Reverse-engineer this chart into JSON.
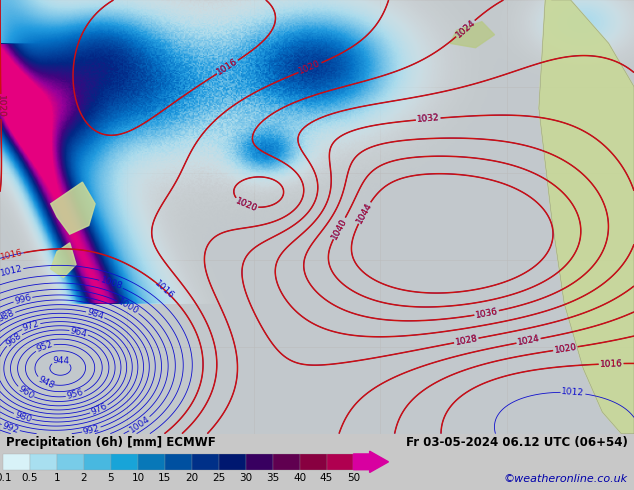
{
  "title_left": "Precipitation (6h) [mm] ECMWF",
  "title_right": "Fr 03-05-2024 06.12 UTC (06+54)",
  "copyright": "©weatheronline.co.uk",
  "colorbar_tick_labels": [
    "0.1",
    "0.5",
    "1",
    "2",
    "5",
    "10",
    "15",
    "20",
    "25",
    "30",
    "35",
    "40",
    "45",
    "50"
  ],
  "cb_colors": [
    "#d8f2f8",
    "#a8dff0",
    "#78cce8",
    "#48b8e0",
    "#18a4d8",
    "#0878b8",
    "#0050a0",
    "#003088",
    "#001870",
    "#380060",
    "#600050",
    "#880040",
    "#b00050",
    "#d800a0"
  ],
  "bg_color": "#c8c8c8",
  "map_bg": "#e8e4de",
  "land_color": "#c8d898",
  "land_color2": "#b8c888",
  "ocean_color": "#dff0f8",
  "precip_light": "#b8e8f8",
  "precip_mid": "#60b8e0",
  "precip_dark": "#1060a8",
  "grid_color": "#bbbbbb",
  "blue_contour_color": "#1010cc",
  "red_contour_color": "#cc1010",
  "title_fontsize": 8.5,
  "copyright_fontsize": 8,
  "copyright_color": "#0000aa",
  "label_fontsize": 6.5
}
